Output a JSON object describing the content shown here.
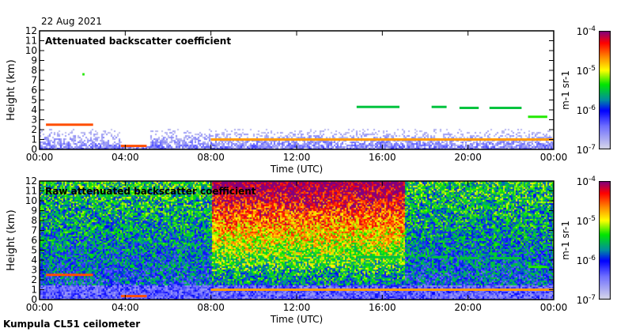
{
  "date": "22 Aug 2021",
  "footer": "Kumpula CL51 ceilometer",
  "chart_data": [
    {
      "type": "heatmap",
      "title": "Attenuated backscatter coefficient",
      "xlabel": "Time (UTC)",
      "ylabel": "Height (km)",
      "xlim": [
        0,
        24
      ],
      "ylim": [
        0,
        12
      ],
      "xticks": [
        "00:00",
        "04:00",
        "08:00",
        "12:00",
        "16:00",
        "20:00",
        "00:00"
      ],
      "yticks": [
        "0",
        "1",
        "2",
        "3",
        "4",
        "5",
        "6",
        "7",
        "8",
        "9",
        "10",
        "11",
        "12"
      ],
      "colorbar": {
        "label": "m-1 sr-1",
        "ticks": [
          "10-7",
          "10-6",
          "10-5",
          "10-4"
        ],
        "log_range": [
          -7,
          -4
        ]
      },
      "features": [
        {
          "name": "cloud-layer",
          "t0": 0.3,
          "t1": 2.5,
          "h": 2.5,
          "log": -4.5
        },
        {
          "name": "low-cloud",
          "t0": 3.8,
          "t1": 5.0,
          "h": 0.35,
          "log": -4.5
        },
        {
          "name": "boundary-layer-cloud",
          "t0": 8.0,
          "t1": 24,
          "h": 1.0,
          "log": -4.7
        },
        {
          "name": "aerosol-layer",
          "t0": 14.8,
          "t1": 16.8,
          "h": 4.3,
          "log": -5.5
        },
        {
          "name": "aerosol-layer",
          "t0": 18.3,
          "t1": 19.0,
          "h": 4.3,
          "log": -5.5
        },
        {
          "name": "aerosol-layer",
          "t0": 19.6,
          "t1": 20.5,
          "h": 4.2,
          "log": -5.5
        },
        {
          "name": "aerosol-layer",
          "t0": 21.0,
          "t1": 22.5,
          "h": 4.2,
          "log": -5.5
        },
        {
          "name": "aerosol-layer",
          "t0": 22.8,
          "t1": 23.7,
          "h": 3.3,
          "log": -5.3
        },
        {
          "name": "high-cloud",
          "t0": 2.0,
          "t1": 2.1,
          "h": 7.6,
          "log": -5.3
        }
      ]
    },
    {
      "type": "heatmap",
      "title": "Raw attenuated backscatter coefficient",
      "xlabel": "Time (UTC)",
      "ylabel": "Height (km)",
      "xlim": [
        0,
        24
      ],
      "ylim": [
        0,
        12
      ],
      "xticks": [
        "00:00",
        "04:00",
        "08:00",
        "12:00",
        "16:00",
        "20:00",
        "00:00"
      ],
      "yticks": [
        "0",
        "1",
        "2",
        "3",
        "4",
        "5",
        "6",
        "7",
        "8",
        "9",
        "10",
        "11",
        "12"
      ],
      "colorbar": {
        "label": "m-1 sr-1",
        "ticks": [
          "10-7",
          "10-6",
          "10-5",
          "10-4"
        ],
        "log_range": [
          -7,
          -4
        ]
      },
      "noise_peak_window": [
        8,
        17
      ]
    }
  ]
}
